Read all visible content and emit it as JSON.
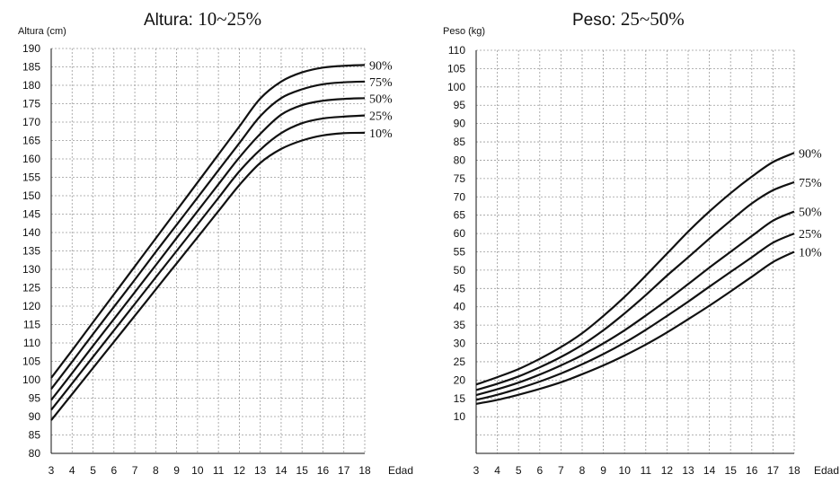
{
  "chart_data": [
    {
      "type": "line",
      "title_prefix": "Altura:",
      "title_value": "10~25%",
      "ylabel": "Altura (cm)",
      "xlabel": "Edad",
      "x": [
        3,
        4,
        5,
        6,
        7,
        8,
        9,
        10,
        11,
        12,
        13,
        14,
        15,
        16,
        17,
        18
      ],
      "xlim": [
        3,
        18
      ],
      "ylim": [
        80,
        190
      ],
      "ytick_step": 5,
      "grid": true,
      "series": [
        {
          "name": "90%",
          "values": [
            100.5,
            108,
            115.6,
            123.2,
            130.8,
            138.4,
            146,
            153.6,
            161.2,
            168.8,
            176.4,
            181,
            183.5,
            184.8,
            185.3,
            185.5
          ]
        },
        {
          "name": "75%",
          "values": [
            97.5,
            104.9,
            112.4,
            119.8,
            127.2,
            134.7,
            142.1,
            149.5,
            156.9,
            164.3,
            171.6,
            176.5,
            178.9,
            180.3,
            180.8,
            181
          ]
        },
        {
          "name": "50%",
          "values": [
            94.5,
            101.8,
            109.2,
            116.5,
            123.8,
            131.1,
            138.5,
            145.8,
            153.1,
            160.4,
            166.8,
            172,
            174.6,
            175.8,
            176.3,
            176.5
          ]
        },
        {
          "name": "25%",
          "values": [
            91.8,
            99,
            106.2,
            113.4,
            120.6,
            127.8,
            135,
            142.2,
            149.4,
            156.6,
            162.5,
            167,
            169.7,
            171,
            171.5,
            171.8
          ]
        },
        {
          "name": "10%",
          "values": [
            89,
            96.1,
            103.2,
            110.3,
            117.4,
            124.5,
            131.6,
            138.7,
            145.8,
            152.9,
            158.9,
            162.7,
            165,
            166.4,
            167,
            167.1
          ]
        }
      ]
    },
    {
      "type": "line",
      "title_prefix": "Peso:",
      "title_value": "25~50%",
      "ylabel": "Peso (kg)",
      "xlabel": "Edad",
      "x": [
        3,
        4,
        5,
        6,
        7,
        8,
        9,
        10,
        11,
        12,
        13,
        14,
        15,
        16,
        17,
        18
      ],
      "xlim": [
        3,
        18
      ],
      "ylim": [
        0,
        110
      ],
      "ytick_min": 10,
      "ytick_step": 5,
      "grid": true,
      "series": [
        {
          "name": "90%",
          "values": [
            18.8,
            20.8,
            23,
            25.8,
            29,
            32.8,
            37.5,
            42.7,
            48.5,
            54.5,
            60.5,
            66,
            71,
            75.5,
            79.5,
            82
          ]
        },
        {
          "name": "75%",
          "values": [
            17.3,
            19,
            21,
            23.5,
            26.3,
            29.6,
            33.6,
            38.2,
            43.2,
            48.5,
            53.5,
            58.6,
            63.5,
            68.2,
            71.8,
            74
          ]
        },
        {
          "name": "50%",
          "values": [
            15.9,
            17.5,
            19.3,
            21.5,
            24,
            26.8,
            30,
            33.6,
            37.6,
            41.8,
            46.2,
            50.7,
            55,
            59.3,
            63.5,
            66
          ]
        },
        {
          "name": "25%",
          "values": [
            14.6,
            16,
            17.7,
            19.6,
            21.8,
            24.3,
            27.1,
            30.2,
            33.7,
            37.5,
            41.4,
            45.5,
            49.5,
            53.5,
            57.5,
            60
          ]
        },
        {
          "name": "10%",
          "values": [
            13.5,
            14.6,
            16,
            17.6,
            19.4,
            21.6,
            24,
            26.7,
            29.7,
            33,
            36.6,
            40.3,
            44.2,
            48.2,
            52.2,
            55
          ]
        }
      ]
    }
  ]
}
